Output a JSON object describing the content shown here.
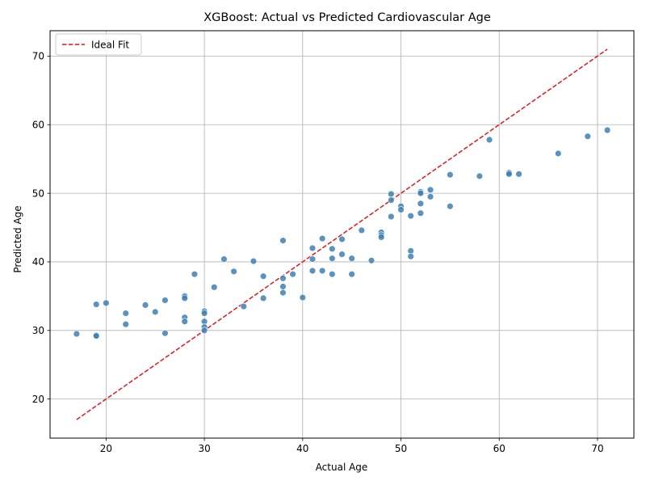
{
  "chart_data": {
    "type": "scatter",
    "title": "XGBoost: Actual vs Predicted Cardiovascular Age",
    "xlabel": "Actual Age",
    "ylabel": "Predicted Age",
    "xlim": [
      14.3,
      73.7
    ],
    "ylim": [
      14.3,
      73.7
    ],
    "xticks": [
      20,
      30,
      40,
      50,
      60,
      70
    ],
    "yticks": [
      20,
      30,
      40,
      50,
      60,
      70
    ],
    "grid": true,
    "legend_position": "top-left",
    "ideal_fit": {
      "name": "Ideal Fit",
      "x": [
        17,
        71
      ],
      "y": [
        17,
        71
      ],
      "color": "#e8141a",
      "style": "dashed"
    },
    "series": [
      {
        "color": "#3d7fb5",
        "points": [
          [
            17,
            29.5
          ],
          [
            19,
            29.3
          ],
          [
            19,
            29.2
          ],
          [
            19,
            33.8
          ],
          [
            20,
            34.0
          ],
          [
            22,
            32.5
          ],
          [
            22,
            30.9
          ],
          [
            24,
            33.7
          ],
          [
            25,
            32.7
          ],
          [
            26,
            34.4
          ],
          [
            26,
            29.6
          ],
          [
            28,
            35.0
          ],
          [
            28,
            34.7
          ],
          [
            28,
            31.9
          ],
          [
            28,
            31.3
          ],
          [
            29,
            38.2
          ],
          [
            30,
            32.8
          ],
          [
            30,
            32.5
          ],
          [
            30,
            31.3
          ],
          [
            30,
            30.5
          ],
          [
            30,
            30.0
          ],
          [
            31,
            36.3
          ],
          [
            32,
            40.4
          ],
          [
            33,
            38.6
          ],
          [
            34,
            33.5
          ],
          [
            35,
            40.1
          ],
          [
            36,
            37.9
          ],
          [
            36,
            34.7
          ],
          [
            38,
            43.1
          ],
          [
            38,
            37.6
          ],
          [
            38,
            36.4
          ],
          [
            38,
            35.5
          ],
          [
            39,
            38.2
          ],
          [
            40,
            34.8
          ],
          [
            41,
            42.0
          ],
          [
            41,
            40.4
          ],
          [
            41,
            38.7
          ],
          [
            42,
            43.4
          ],
          [
            42,
            38.7
          ],
          [
            43,
            41.9
          ],
          [
            43,
            40.5
          ],
          [
            43,
            38.2
          ],
          [
            44,
            43.3
          ],
          [
            44,
            41.1
          ],
          [
            45,
            40.5
          ],
          [
            45,
            38.2
          ],
          [
            46,
            44.6
          ],
          [
            47,
            40.2
          ],
          [
            48,
            44.3
          ],
          [
            48,
            43.9
          ],
          [
            48,
            43.6
          ],
          [
            49,
            49.9
          ],
          [
            49,
            49.0
          ],
          [
            49,
            46.6
          ],
          [
            50,
            48.1
          ],
          [
            50,
            47.6
          ],
          [
            51,
            46.7
          ],
          [
            51,
            41.6
          ],
          [
            51,
            40.8
          ],
          [
            52,
            50.2
          ],
          [
            52,
            50.0
          ],
          [
            52,
            48.5
          ],
          [
            52,
            47.1
          ],
          [
            53,
            50.5
          ],
          [
            53,
            49.5
          ],
          [
            55,
            52.7
          ],
          [
            55,
            48.1
          ],
          [
            58,
            52.5
          ],
          [
            59,
            57.8
          ],
          [
            61,
            53.0
          ],
          [
            61,
            52.8
          ],
          [
            62,
            52.8
          ],
          [
            66,
            55.8
          ],
          [
            69,
            58.3
          ],
          [
            71,
            59.2
          ]
        ]
      }
    ]
  }
}
